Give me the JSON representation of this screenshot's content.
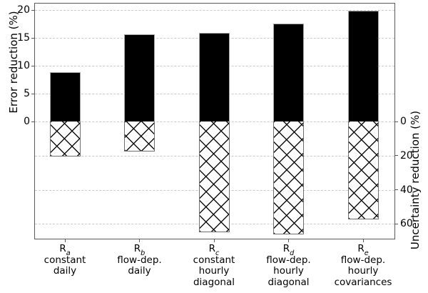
{
  "chart_data": {
    "type": "bar",
    "title": "",
    "layout_hint": "diverging dual-axis bar chart; black solid bars extend up on left axis, white cross-hatched bars extend down on inverted right axis; dashed horizontal grid",
    "categories": [
      {
        "tick_base": "R",
        "tick_sub": "a",
        "desc_lines": [
          "constant",
          "daily"
        ]
      },
      {
        "tick_base": "R",
        "tick_sub": "b",
        "desc_lines": [
          "flow-dep.",
          "daily"
        ]
      },
      {
        "tick_base": "R",
        "tick_sub": "c",
        "desc_lines": [
          "constant",
          "hourly",
          "diagonal"
        ]
      },
      {
        "tick_base": "R",
        "tick_sub": "d",
        "desc_lines": [
          "flow-dep.",
          "hourly",
          "diagonal"
        ]
      },
      {
        "tick_base": "R",
        "tick_sub": "e",
        "desc_lines": [
          "flow-dep.",
          "hourly",
          "covariances"
        ]
      }
    ],
    "series": [
      {
        "name": "Error reduction (%)",
        "axis": "left",
        "direction": "up",
        "fill": "solid-black",
        "values": [
          8.9,
          15.7,
          15.9,
          17.6,
          19.9
        ]
      },
      {
        "name": "Uncertainty reduction (%)",
        "axis": "right",
        "direction": "down",
        "fill": "white-crosshatch",
        "values": [
          20.5,
          17.5,
          65.0,
          66.0,
          57.5
        ]
      }
    ],
    "left_axis": {
      "label": "Error reduction (%)",
      "tick_values": [
        0,
        5,
        10,
        15,
        20
      ],
      "tick_labels": [
        "0",
        "5",
        "10",
        "15",
        "20"
      ],
      "range_shown": [
        0,
        20
      ]
    },
    "right_axis": {
      "label": "Uncertainty reduction (%)",
      "tick_values": [
        0,
        20,
        40,
        60
      ],
      "tick_labels": [
        "0",
        "20",
        "40",
        "60"
      ],
      "inverted": true,
      "range_shown": [
        0,
        60
      ]
    },
    "grid": true,
    "legend": false
  },
  "style": {
    "background": "#ffffff",
    "bar_fill": "#000000",
    "bar_edge": "#a6a6a6",
    "hatch_fill": "#ffffff",
    "hatch_line": "#111111",
    "hatch_edge": "#6e6e6e",
    "grid_color": "#c9c9c9",
    "spine_color": "#5a5a5a",
    "text_color": "#000000"
  }
}
